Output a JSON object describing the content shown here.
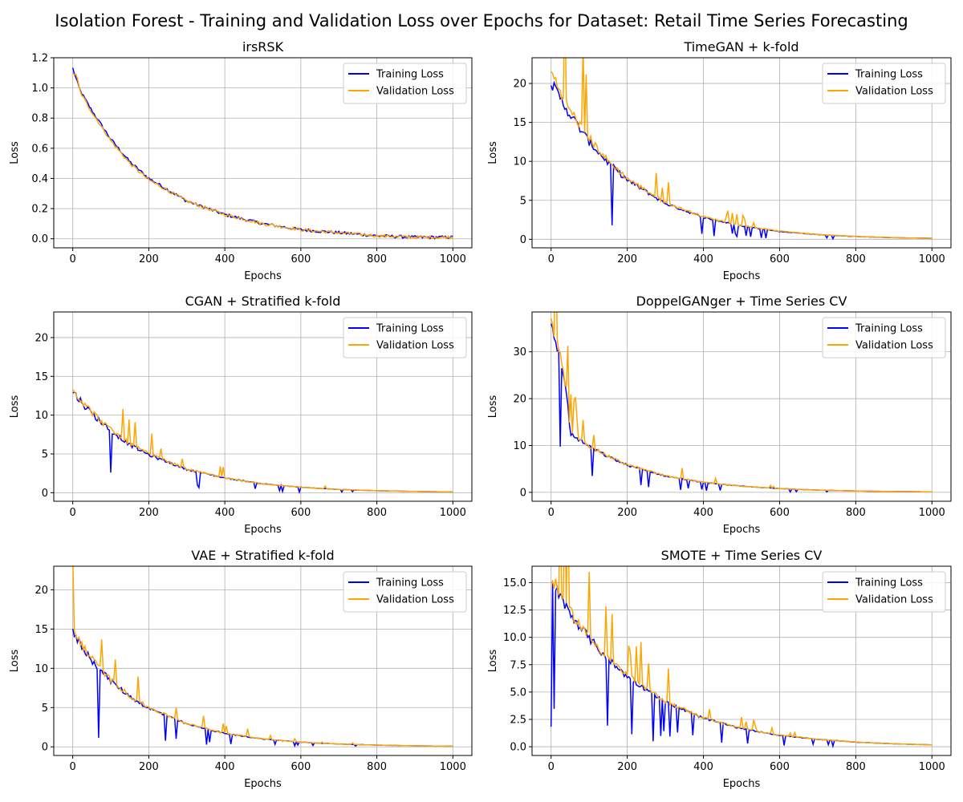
{
  "figure": {
    "suptitle": "Isolation Forest - Training and Validation Loss over Epochs for Dataset: Retail Time Series Forecasting"
  },
  "colors": {
    "training": "#0000ff",
    "validation": "#ffa500",
    "grid": "#b0b0b0"
  },
  "chart_data": [
    {
      "type": "line",
      "title": "irsRSK",
      "xlabel": "Epochs",
      "ylabel": "Loss",
      "xlim": [
        -50,
        1050
      ],
      "ylim": [
        -0.06,
        1.2
      ],
      "xticks": [
        0,
        200,
        400,
        600,
        800,
        1000
      ],
      "yticks": [
        0.0,
        0.2,
        0.4,
        0.6,
        0.8,
        1.0,
        1.2
      ],
      "ytick_labels": [
        "0.0",
        "0.2",
        "0.4",
        "0.6",
        "0.8",
        "1.0",
        "1.2"
      ],
      "grid": true,
      "legend": "upper right",
      "series": [
        {
          "name": "Training Loss",
          "color": "#0000ff",
          "x": [
            0,
            10,
            20,
            50,
            100,
            150,
            200,
            300,
            400,
            500,
            600,
            700,
            800,
            900,
            1000
          ],
          "y": [
            1.13,
            1.05,
            0.98,
            0.85,
            0.66,
            0.51,
            0.4,
            0.25,
            0.16,
            0.1,
            0.06,
            0.04,
            0.02,
            0.01,
            0.01
          ]
        },
        {
          "name": "Validation Loss",
          "color": "#ffa500",
          "x": [
            0,
            10,
            20,
            50,
            100,
            150,
            200,
            300,
            400,
            500,
            600,
            700,
            800,
            900,
            1000
          ],
          "y": [
            1.1,
            1.08,
            0.97,
            0.84,
            0.65,
            0.5,
            0.39,
            0.25,
            0.16,
            0.1,
            0.06,
            0.04,
            0.02,
            0.01,
            0.01
          ]
        }
      ]
    },
    {
      "type": "line",
      "title": "TimeGAN + k-fold",
      "xlabel": "Epochs",
      "ylabel": "Loss",
      "xlim": [
        -50,
        1050
      ],
      "ylim": [
        -1.1,
        23.3
      ],
      "xticks": [
        0,
        200,
        400,
        600,
        800,
        1000
      ],
      "yticks": [
        0,
        5,
        10,
        15,
        20
      ],
      "ytick_labels": [
        "0",
        "5",
        "10",
        "15",
        "20"
      ],
      "grid": true,
      "legend": "upper right",
      "series": [
        {
          "name": "Training Loss",
          "color": "#0000ff",
          "x": [
            0,
            50,
            100,
            150,
            200,
            300,
            400,
            500,
            600,
            700,
            800,
            900,
            1000
          ],
          "y": [
            20.0,
            16.0,
            12.5,
            9.8,
            7.6,
            4.6,
            2.8,
            1.7,
            1.0,
            0.6,
            0.35,
            0.2,
            0.12
          ]
        },
        {
          "name": "Validation Loss",
          "color": "#ffa500",
          "x": [
            0,
            50,
            100,
            150,
            200,
            300,
            400,
            500,
            600,
            700,
            800,
            900,
            1000
          ],
          "y": [
            21.5,
            16.5,
            13.0,
            10.0,
            7.8,
            4.7,
            2.9,
            1.75,
            1.05,
            0.62,
            0.36,
            0.21,
            0.12
          ]
        }
      ]
    },
    {
      "type": "line",
      "title": "CGAN + Stratified k-fold",
      "xlabel": "Epochs",
      "ylabel": "Loss",
      "xlim": [
        -50,
        1050
      ],
      "ylim": [
        -1.1,
        23.3
      ],
      "xticks": [
        0,
        200,
        400,
        600,
        800,
        1000
      ],
      "yticks": [
        0,
        5,
        10,
        15,
        20
      ],
      "ytick_labels": [
        "0",
        "5",
        "10",
        "15",
        "20"
      ],
      "grid": true,
      "legend": "upper right",
      "series": [
        {
          "name": "Training Loss",
          "color": "#0000ff",
          "x": [
            0,
            50,
            100,
            150,
            200,
            300,
            400,
            500,
            600,
            700,
            800,
            900,
            1000
          ],
          "y": [
            13.0,
            10.2,
            8.0,
            6.2,
            4.9,
            3.0,
            1.9,
            1.15,
            0.7,
            0.42,
            0.26,
            0.16,
            0.1
          ]
        },
        {
          "name": "Validation Loss",
          "color": "#ffa500",
          "x": [
            0,
            50,
            100,
            150,
            200,
            300,
            400,
            500,
            600,
            700,
            800,
            900,
            1000
          ],
          "y": [
            13.2,
            10.4,
            8.1,
            6.3,
            5.0,
            3.05,
            1.9,
            1.15,
            0.7,
            0.42,
            0.26,
            0.16,
            0.1
          ]
        }
      ]
    },
    {
      "type": "line",
      "title": "DoppelGANger + Time Series CV",
      "xlabel": "Epochs",
      "ylabel": "Loss",
      "xlim": [
        -50,
        1050
      ],
      "ylim": [
        -1.9,
        38.5
      ],
      "xticks": [
        0,
        200,
        400,
        600,
        800,
        1000
      ],
      "yticks": [
        0,
        10,
        20,
        30
      ],
      "ytick_labels": [
        "0",
        "10",
        "20",
        "30"
      ],
      "grid": true,
      "legend": "upper right",
      "series": [
        {
          "name": "Training Loss",
          "color": "#0000ff",
          "x": [
            0,
            20,
            40,
            50,
            100,
            150,
            200,
            300,
            400,
            500,
            600,
            700,
            800,
            900,
            1000
          ],
          "y": [
            35.0,
            30.0,
            22.0,
            12.5,
            9.8,
            7.6,
            5.8,
            3.5,
            2.1,
            1.3,
            0.8,
            0.48,
            0.29,
            0.18,
            0.11
          ]
        },
        {
          "name": "Validation Loss",
          "color": "#ffa500",
          "x": [
            0,
            20,
            40,
            50,
            100,
            150,
            200,
            300,
            400,
            500,
            600,
            700,
            800,
            900,
            1000
          ],
          "y": [
            36.5,
            31.0,
            22.0,
            12.5,
            9.9,
            7.7,
            5.9,
            3.55,
            2.15,
            1.3,
            0.8,
            0.48,
            0.29,
            0.18,
            0.11
          ]
        }
      ]
    },
    {
      "type": "line",
      "title": "VAE + Stratified k-fold",
      "xlabel": "Epochs",
      "ylabel": "Loss",
      "xlim": [
        -50,
        1050
      ],
      "ylim": [
        -1.1,
        23.0
      ],
      "xticks": [
        0,
        200,
        400,
        600,
        800,
        1000
      ],
      "yticks": [
        0,
        5,
        10,
        15,
        20
      ],
      "ytick_labels": [
        "0",
        "5",
        "10",
        "15",
        "20"
      ],
      "grid": true,
      "legend": "upper right",
      "series": [
        {
          "name": "Training Loss",
          "color": "#0000ff",
          "x": [
            0,
            50,
            100,
            150,
            200,
            300,
            400,
            500,
            600,
            700,
            800,
            900,
            1000
          ],
          "y": [
            14.5,
            11.0,
            8.4,
            6.4,
            4.9,
            2.9,
            1.7,
            1.0,
            0.6,
            0.36,
            0.22,
            0.13,
            0.08
          ]
        },
        {
          "name": "Validation Loss",
          "color": "#ffa500",
          "x": [
            0,
            50,
            100,
            150,
            200,
            300,
            400,
            500,
            600,
            700,
            800,
            900,
            1000
          ],
          "y": [
            14.8,
            11.2,
            8.5,
            6.5,
            5.0,
            2.95,
            1.75,
            1.02,
            0.6,
            0.36,
            0.22,
            0.13,
            0.08
          ]
        }
      ]
    },
    {
      "type": "line",
      "title": "SMOTE + Time Series CV",
      "xlabel": "Epochs",
      "ylabel": "Loss",
      "xlim": [
        -50,
        1050
      ],
      "ylim": [
        -0.8,
        16.5
      ],
      "xticks": [
        0,
        200,
        400,
        600,
        800,
        1000
      ],
      "yticks": [
        0.0,
        2.5,
        5.0,
        7.5,
        10.0,
        12.5,
        15.0
      ],
      "ytick_labels": [
        "0.0",
        "2.5",
        "5.0",
        "7.5",
        "10.0",
        "12.5",
        "15.0"
      ],
      "grid": true,
      "legend": "upper right",
      "series": [
        {
          "name": "Training Loss",
          "color": "#0000ff",
          "x": [
            0,
            50,
            100,
            150,
            200,
            300,
            400,
            500,
            600,
            700,
            800,
            900,
            1000
          ],
          "y": [
            15.0,
            12.2,
            9.9,
            8.0,
            6.4,
            4.1,
            2.6,
            1.65,
            1.05,
            0.67,
            0.42,
            0.27,
            0.17
          ]
        },
        {
          "name": "Validation Loss",
          "color": "#ffa500",
          "x": [
            0,
            50,
            100,
            150,
            200,
            300,
            400,
            500,
            600,
            700,
            800,
            900,
            1000
          ],
          "y": [
            15.5,
            12.4,
            10.0,
            8.1,
            6.5,
            4.15,
            2.65,
            1.68,
            1.07,
            0.68,
            0.43,
            0.27,
            0.17
          ]
        }
      ]
    }
  ]
}
